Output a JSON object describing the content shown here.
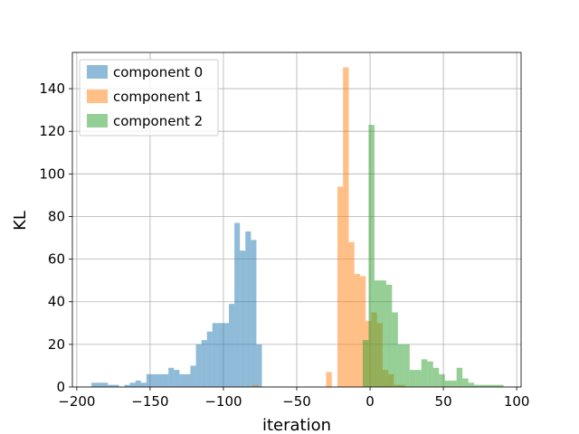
{
  "chart_data": {
    "type": "histogram",
    "title": "",
    "xlabel": "iteration",
    "ylabel": "KL",
    "xlim": [
      -203,
      103
    ],
    "ylim": [
      0,
      157
    ],
    "xticks": [
      -200,
      -150,
      -100,
      -50,
      0,
      50,
      100
    ],
    "xtick_labels": [
      "−200",
      "−150",
      "−100",
      "−50",
      "0",
      "50",
      "100"
    ],
    "yticks": [
      0,
      20,
      40,
      60,
      80,
      100,
      120,
      140
    ],
    "ytick_labels": [
      "0",
      "20",
      "40",
      "60",
      "80",
      "100",
      "120",
      "140"
    ],
    "grid": true,
    "legend_position": "top-left",
    "series": [
      {
        "name": "component 0",
        "color": "#1f77b4",
        "alpha": 0.5,
        "bin_start": -190,
        "bin_width": 3.75,
        "counts": [
          2,
          2,
          2,
          1,
          1,
          0,
          1,
          2,
          3,
          2,
          6,
          6,
          6,
          6,
          9,
          8,
          6,
          6,
          10,
          20,
          22,
          26,
          30,
          30,
          30,
          39,
          77,
          64,
          73,
          69,
          20
        ]
      },
      {
        "name": "component 1",
        "color": "#ff7f0e",
        "alpha": 0.5,
        "bin_start": -80,
        "bin_width": 3.85,
        "counts": [
          1,
          0,
          0,
          0,
          0,
          0,
          0,
          0,
          0,
          0,
          0,
          0,
          0,
          7,
          0,
          94,
          150,
          68,
          53,
          52,
          31,
          35,
          30,
          8,
          6,
          1,
          1
        ]
      },
      {
        "name": "component 2",
        "color": "#2ca02c",
        "alpha": 0.5,
        "bin_start": -5,
        "bin_width": 4.0,
        "counts": [
          22,
          123,
          50,
          50,
          48,
          35,
          20,
          20,
          8,
          8,
          13,
          12,
          9,
          6,
          3,
          3,
          9,
          4,
          2,
          1,
          1,
          1,
          1,
          1
        ]
      }
    ]
  }
}
